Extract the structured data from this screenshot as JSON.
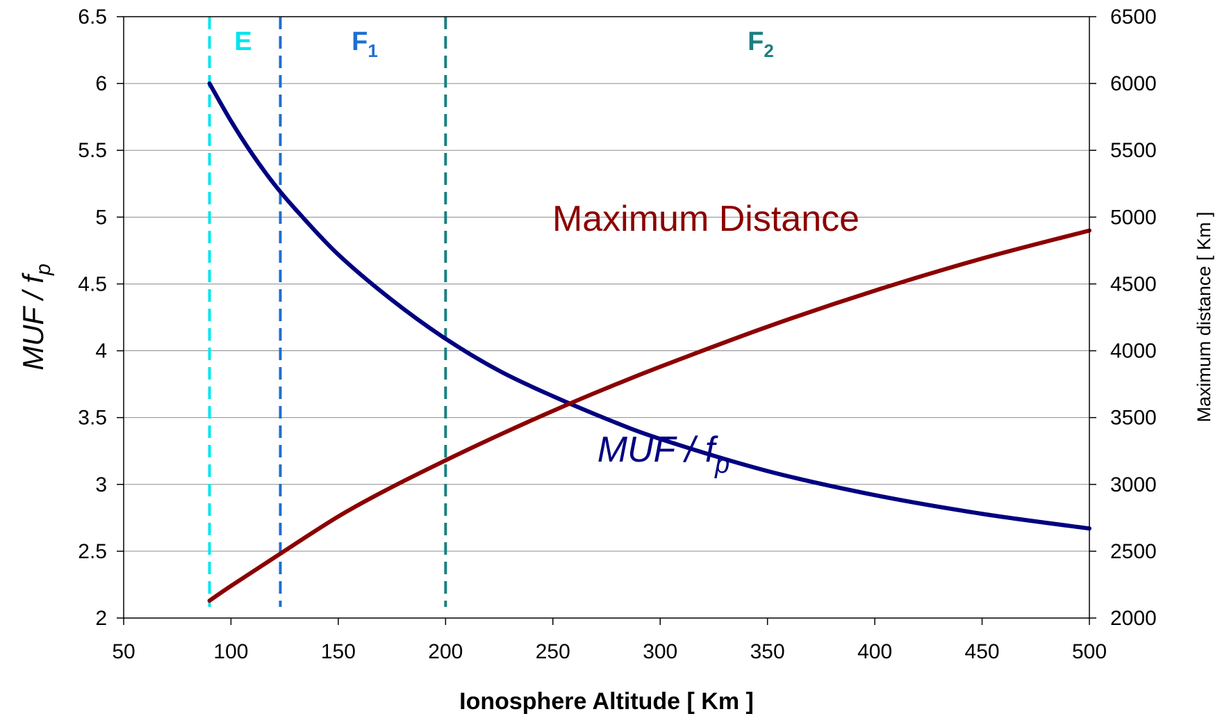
{
  "chart_data": {
    "type": "line",
    "xlabel": "Ionosphere Altitude [ Km ]",
    "ylabel_main": "MUF / f",
    "ylabel_sub": "p",
    "y2label": "Maximum distance  [ Km ]",
    "xlim": [
      50,
      500
    ],
    "xticks": [
      50,
      100,
      150,
      200,
      250,
      300,
      350,
      400,
      450,
      500
    ],
    "ylim": [
      2,
      6.5
    ],
    "yticks": [
      2,
      2.5,
      3,
      3.5,
      4,
      4.5,
      5,
      5.5,
      6,
      6.5
    ],
    "y2lim": [
      2000,
      6500
    ],
    "y2ticks": [
      2000,
      2500,
      3000,
      3500,
      4000,
      4500,
      5000,
      5500,
      6000,
      6500
    ],
    "grid": "horizontal",
    "series": [
      {
        "axis": "left",
        "color": "#000080",
        "x": [
          90,
          100,
          110,
          120,
          130,
          150,
          175,
          200,
          225,
          250,
          275,
          300,
          350,
          400,
          450,
          500
        ],
        "y": [
          6.0,
          5.72,
          5.47,
          5.25,
          5.06,
          4.72,
          4.38,
          4.09,
          3.85,
          3.66,
          3.49,
          3.34,
          3.1,
          2.92,
          2.78,
          2.67
        ]
      },
      {
        "axis": "right",
        "color": "#8B0000",
        "x": [
          90,
          100,
          120,
          150,
          175,
          200,
          225,
          250,
          275,
          300,
          350,
          400,
          450,
          500
        ],
        "y": [
          2130,
          2240,
          2450,
          2760,
          2980,
          3180,
          3370,
          3550,
          3720,
          3880,
          4180,
          4450,
          4690,
          4900
        ]
      }
    ],
    "regions": [
      {
        "label": "E",
        "sub": "",
        "x": 90,
        "color": "#00E5EE"
      },
      {
        "label": "F",
        "sub": "1",
        "x": 123,
        "color": "#1E6FD0"
      },
      {
        "label": "F",
        "sub": "2",
        "x": 200,
        "color": "#1A8080"
      }
    ],
    "annotations": [
      {
        "text": "Maximum Distance",
        "sub": "",
        "italic": false,
        "color": "#8B0000"
      },
      {
        "text": "MUF / f",
        "sub": "p",
        "italic": true,
        "color": "#000080"
      }
    ]
  }
}
